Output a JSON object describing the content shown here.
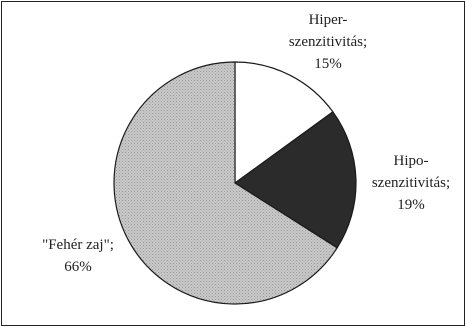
{
  "chart_data": {
    "type": "pie",
    "title": "",
    "start_angle_deg": 0,
    "direction": "clockwise",
    "slices": [
      {
        "label": "Hiper-szenzitivitás",
        "label_lines": [
          "Hiper-",
          "szenzitivitás;",
          "15%"
        ],
        "value": 15,
        "color": "#ffffff",
        "pattern": "none"
      },
      {
        "label": "Hipo-szenzitivitás",
        "label_lines": [
          "Hipo-",
          "szenzitivitás;",
          "19%"
        ],
        "value": 19,
        "color": "#2b2b2b",
        "pattern": "none"
      },
      {
        "label": "\"Fehér zaj\"",
        "label_lines": [
          "\"Fehér zaj\";",
          "66%"
        ],
        "value": 66,
        "color": "#c8c8c8",
        "pattern": "dotted"
      }
    ],
    "legend": "none",
    "grid": false
  }
}
